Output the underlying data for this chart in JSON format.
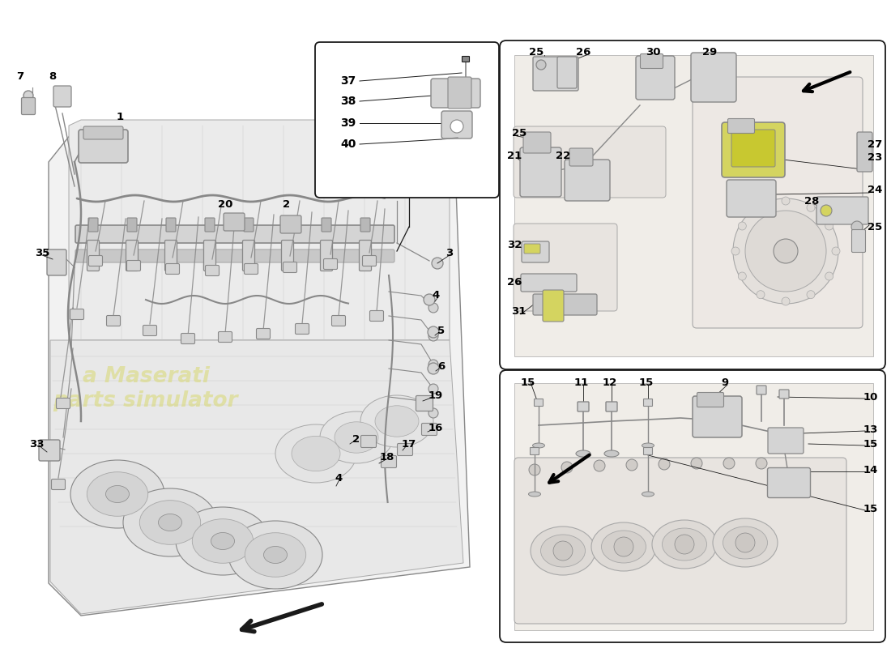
{
  "bg_color": "#ffffff",
  "line_color": "#1a1a1a",
  "gray1": "#c8c8c8",
  "gray2": "#a8a8a8",
  "gray3": "#888888",
  "gray4": "#e8e8e8",
  "gray5": "#d4d4d4",
  "yellow": "#d4d460",
  "yellow2": "#c8c840",
  "watermark_color": "#d8d870",
  "fig_width": 11.0,
  "fig_height": 8.0,
  "dpi": 100
}
